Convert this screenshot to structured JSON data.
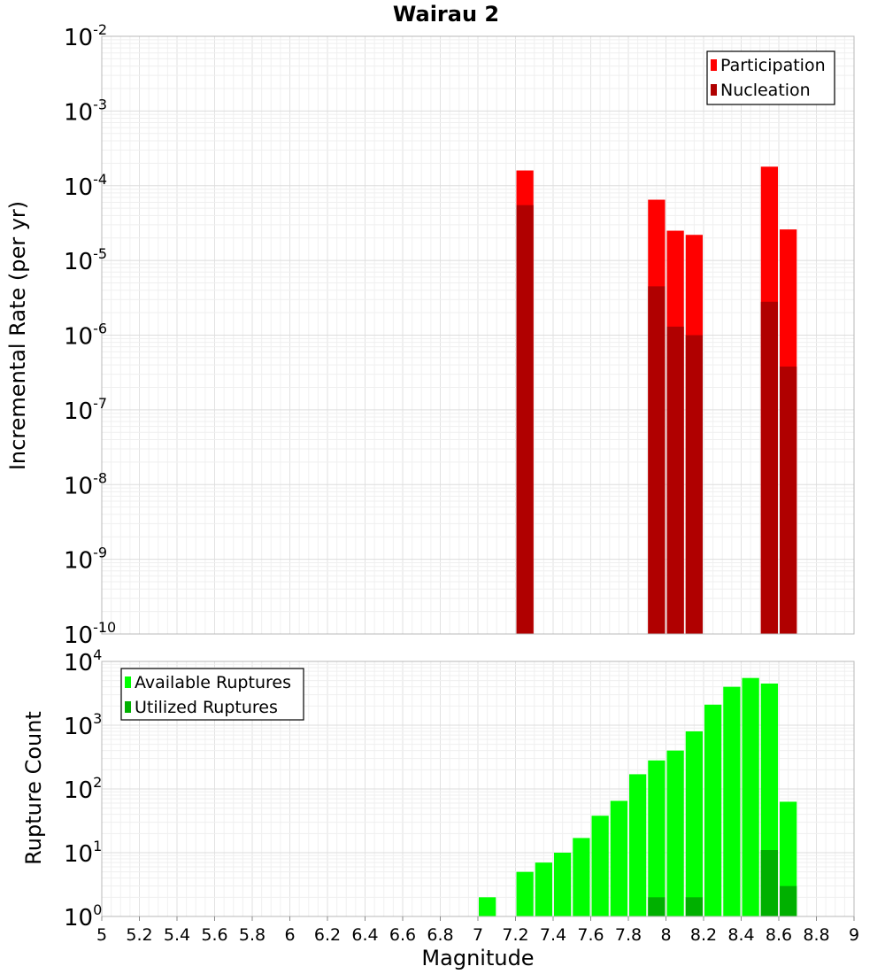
{
  "title": "Wairau 2",
  "chart_data": [
    {
      "type": "bar",
      "title": "Wairau 2",
      "xlabel": "",
      "ylabel": "Incremental Rate (per yr)",
      "y_scale": "log",
      "ylim_exponents": [
        -10,
        -2
      ],
      "xlim": [
        5,
        9
      ],
      "bin_width": 0.1,
      "grid": true,
      "legend_position": "top-right",
      "series": [
        {
          "name": "Participation",
          "color": "#ff0000",
          "x": [
            7.25,
            7.95,
            8.05,
            8.15,
            8.55,
            8.65
          ],
          "values": [
            0.00016,
            6.5e-05,
            2.5e-05,
            2.2e-05,
            0.00018,
            2.6e-05
          ]
        },
        {
          "name": "Nucleation",
          "color": "#b00000",
          "x": [
            7.25,
            7.95,
            8.05,
            8.15,
            8.55,
            8.65
          ],
          "values": [
            5.5e-05,
            4.5e-06,
            1.3e-06,
            1e-06,
            2.8e-06,
            3.8e-07
          ]
        }
      ]
    },
    {
      "type": "bar",
      "xlabel": "Magnitude",
      "ylabel": "Rupture Count",
      "y_scale": "log",
      "ylim_exponents": [
        0,
        4
      ],
      "xlim": [
        5,
        9
      ],
      "bin_width": 0.1,
      "grid": true,
      "legend_position": "top-left",
      "x_ticks": [
        "5",
        "5.2",
        "5.4",
        "5.6",
        "5.8",
        "6",
        "6.2",
        "6.4",
        "6.6",
        "6.8",
        "7",
        "7.2",
        "7.4",
        "7.6",
        "7.8",
        "8",
        "8.2",
        "8.4",
        "8.6",
        "8.8",
        "9"
      ],
      "series": [
        {
          "name": "Available Ruptures",
          "color": "#00ff00",
          "x": [
            6.75,
            7.05,
            7.15,
            7.25,
            7.35,
            7.45,
            7.55,
            7.65,
            7.75,
            7.85,
            7.95,
            8.05,
            8.15,
            8.25,
            8.35,
            8.45,
            8.55,
            8.65
          ],
          "values": [
            1,
            2,
            1,
            5,
            7,
            10,
            17,
            38,
            65,
            170,
            280,
            400,
            800,
            2100,
            4000,
            5500,
            4500,
            63
          ]
        },
        {
          "name": "Utilized Ruptures",
          "color": "#00b000",
          "x": [
            7.25,
            7.95,
            8.05,
            8.15,
            8.55,
            8.65
          ],
          "values": [
            1,
            2,
            1,
            2,
            11,
            3
          ]
        }
      ]
    }
  ]
}
